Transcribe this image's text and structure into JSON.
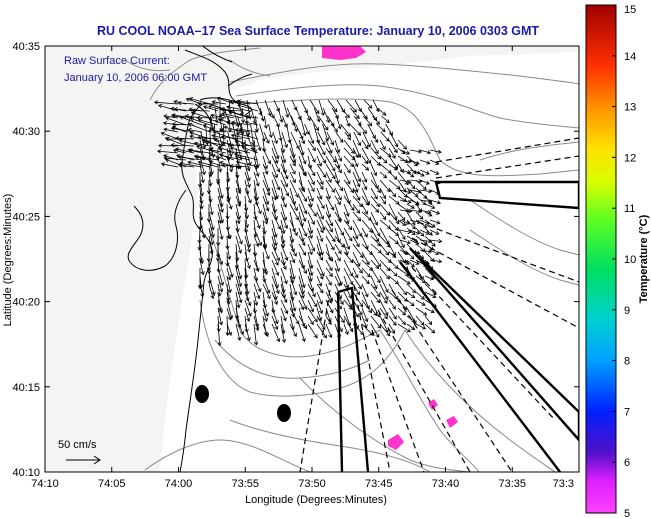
{
  "title": "RU COOL  NOAA–17  Sea Surface Temperature:  January 10, 2006 0303 GMT",
  "current_note": {
    "line1": "Raw Surface Current:",
    "line2": "January 10, 2006 06:00 GMT"
  },
  "scale_label": "50 cm/s",
  "xaxis": {
    "label": "Longitude (Degrees:Minutes)",
    "ticks": [
      "74:10",
      "74:05",
      "74:00",
      "73:55",
      "73:50",
      "73:45",
      "73:40",
      "73:35",
      "73:3"
    ]
  },
  "yaxis": {
    "label": "Latitude (Degrees:Minutes)",
    "ticks": [
      "40:35",
      "40:30",
      "40:25",
      "40:20",
      "40:15",
      "40:10"
    ]
  },
  "colorbar": {
    "label": "Temperature (°C)",
    "ticks": [
      "15",
      "14",
      "13",
      "12",
      "11",
      "10",
      "9",
      "8",
      "7",
      "6",
      "5"
    ],
    "colors": [
      "#c00000",
      "#ff2000",
      "#ff8000",
      "#ffd000",
      "#c8ff00",
      "#40ff40",
      "#00e0a0",
      "#00b0ff",
      "#0040ff",
      "#4000c0",
      "#ff40ff"
    ]
  },
  "sst_patch_color": "#ff33cc"
}
